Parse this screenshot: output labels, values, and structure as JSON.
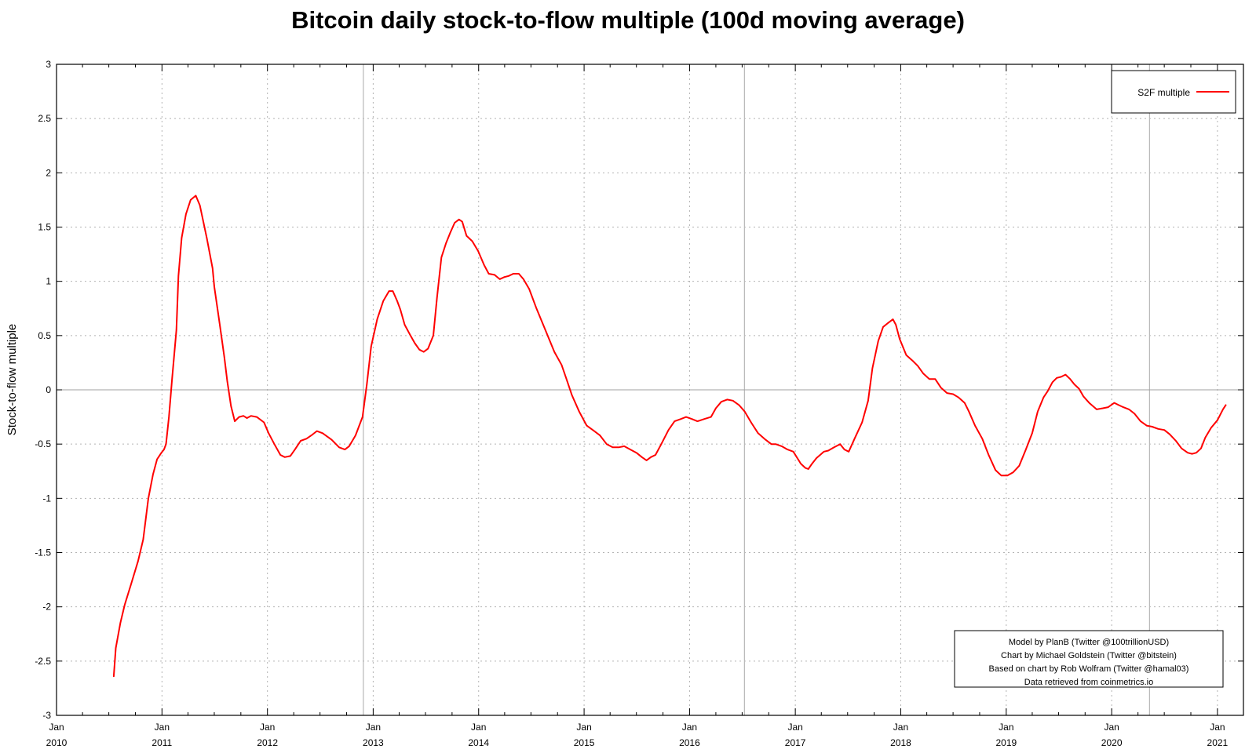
{
  "chart_data": {
    "type": "line",
    "title": "Bitcoin daily stock-to-flow multiple (100d moving average)",
    "xlabel": "",
    "ylabel": "Stock-to-flow multiple",
    "ylim": [
      -3,
      3
    ],
    "yticks": [
      3,
      2.5,
      2,
      1.5,
      1,
      0.5,
      0,
      -0.5,
      -1,
      -1.5,
      -2,
      -2.5,
      -3
    ],
    "ytick_labels": [
      "3",
      "2.5",
      "2",
      "1.5",
      "1",
      "0.5",
      "0",
      "-0.5",
      "-1",
      "-1.5",
      "-2",
      "-2.5",
      "-3"
    ],
    "xlim": [
      "2010-01-01",
      "2021-04-01"
    ],
    "xticks": [
      {
        "date": "2010-01-01",
        "month": "Jan",
        "year": "2010"
      },
      {
        "date": "2011-01-01",
        "month": "Jan",
        "year": "2011"
      },
      {
        "date": "2012-01-01",
        "month": "Jan",
        "year": "2012"
      },
      {
        "date": "2013-01-01",
        "month": "Jan",
        "year": "2013"
      },
      {
        "date": "2014-01-01",
        "month": "Jan",
        "year": "2014"
      },
      {
        "date": "2015-01-01",
        "month": "Jan",
        "year": "2015"
      },
      {
        "date": "2016-01-01",
        "month": "Jan",
        "year": "2016"
      },
      {
        "date": "2017-01-01",
        "month": "Jan",
        "year": "2017"
      },
      {
        "date": "2018-01-01",
        "month": "Jan",
        "year": "2018"
      },
      {
        "date": "2019-01-01",
        "month": "Jan",
        "year": "2019"
      },
      {
        "date": "2020-01-01",
        "month": "Jan",
        "year": "2020"
      },
      {
        "date": "2021-01-01",
        "month": "Jan",
        "year": "2021"
      }
    ],
    "grid": true,
    "zero_line": 0,
    "halving_lines": [
      "2012-11-28",
      "2016-07-09",
      "2020-05-11"
    ],
    "legend": {
      "placement": "top-right",
      "entries": [
        "S2F multiple"
      ]
    },
    "series": [
      {
        "name": "S2F multiple",
        "color": "#ff0000",
        "points": [
          [
            "2010-07-18",
            -2.64
          ],
          [
            "2010-07-25",
            -2.38
          ],
          [
            "2010-08-10",
            -2.15
          ],
          [
            "2010-08-25",
            -1.98
          ],
          [
            "2010-09-15",
            -1.8
          ],
          [
            "2010-10-10",
            -1.58
          ],
          [
            "2010-10-28",
            -1.38
          ],
          [
            "2010-11-15",
            -1.0
          ],
          [
            "2010-12-01",
            -0.78
          ],
          [
            "2010-12-15",
            -0.64
          ],
          [
            "2010-12-30",
            -0.58
          ],
          [
            "2011-01-08",
            -0.55
          ],
          [
            "2011-01-15",
            -0.5
          ],
          [
            "2011-01-25",
            -0.25
          ],
          [
            "2011-02-05",
            0.1
          ],
          [
            "2011-02-20",
            0.55
          ],
          [
            "2011-02-27",
            1.05
          ],
          [
            "2011-03-10",
            1.4
          ],
          [
            "2011-03-25",
            1.62
          ],
          [
            "2011-04-10",
            1.75
          ],
          [
            "2011-04-28",
            1.79
          ],
          [
            "2011-05-12",
            1.7
          ],
          [
            "2011-06-05",
            1.4
          ],
          [
            "2011-06-25",
            1.12
          ],
          [
            "2011-07-01",
            0.95
          ],
          [
            "2011-07-20",
            0.6
          ],
          [
            "2011-08-05",
            0.3
          ],
          [
            "2011-08-15",
            0.08
          ],
          [
            "2011-08-28",
            -0.15
          ],
          [
            "2011-09-10",
            -0.29
          ],
          [
            "2011-09-25",
            -0.25
          ],
          [
            "2011-10-10",
            -0.24
          ],
          [
            "2011-10-22",
            -0.26
          ],
          [
            "2011-11-05",
            -0.24
          ],
          [
            "2011-11-25",
            -0.25
          ],
          [
            "2011-12-20",
            -0.3
          ],
          [
            "2012-01-05",
            -0.4
          ],
          [
            "2012-01-25",
            -0.5
          ],
          [
            "2012-02-15",
            -0.6
          ],
          [
            "2012-03-01",
            -0.62
          ],
          [
            "2012-03-20",
            -0.61
          ],
          [
            "2012-04-05",
            -0.55
          ],
          [
            "2012-04-25",
            -0.47
          ],
          [
            "2012-05-15",
            -0.45
          ],
          [
            "2012-06-01",
            -0.42
          ],
          [
            "2012-06-20",
            -0.38
          ],
          [
            "2012-07-10",
            -0.4
          ],
          [
            "2012-08-10",
            -0.46
          ],
          [
            "2012-09-05",
            -0.53
          ],
          [
            "2012-09-25",
            -0.55
          ],
          [
            "2012-10-10",
            -0.52
          ],
          [
            "2012-11-01",
            -0.42
          ],
          [
            "2012-11-25",
            -0.25
          ],
          [
            "2012-12-10",
            0.05
          ],
          [
            "2012-12-25",
            0.4
          ],
          [
            "2013-01-15",
            0.65
          ],
          [
            "2013-02-05",
            0.82
          ],
          [
            "2013-02-25",
            0.91
          ],
          [
            "2013-03-10",
            0.91
          ],
          [
            "2013-03-25",
            0.82
          ],
          [
            "2013-04-05",
            0.74
          ],
          [
            "2013-04-20",
            0.6
          ],
          [
            "2013-05-10",
            0.5
          ],
          [
            "2013-05-25",
            0.43
          ],
          [
            "2013-06-10",
            0.37
          ],
          [
            "2013-06-25",
            0.35
          ],
          [
            "2013-07-10",
            0.38
          ],
          [
            "2013-07-28",
            0.5
          ],
          [
            "2013-08-10",
            0.85
          ],
          [
            "2013-08-25",
            1.22
          ],
          [
            "2013-09-10",
            1.35
          ],
          [
            "2013-09-25",
            1.45
          ],
          [
            "2013-10-10",
            1.54
          ],
          [
            "2013-10-25",
            1.57
          ],
          [
            "2013-11-05",
            1.55
          ],
          [
            "2013-11-20",
            1.42
          ],
          [
            "2013-12-10",
            1.37
          ],
          [
            "2013-12-30",
            1.28
          ],
          [
            "2014-01-20",
            1.15
          ],
          [
            "2014-02-05",
            1.07
          ],
          [
            "2014-02-25",
            1.06
          ],
          [
            "2014-03-15",
            1.02
          ],
          [
            "2014-04-01",
            1.04
          ],
          [
            "2014-04-15",
            1.05
          ],
          [
            "2014-05-01",
            1.07
          ],
          [
            "2014-05-20",
            1.07
          ],
          [
            "2014-06-05",
            1.02
          ],
          [
            "2014-06-25",
            0.93
          ],
          [
            "2014-07-20",
            0.75
          ],
          [
            "2014-08-20",
            0.55
          ],
          [
            "2014-09-20",
            0.35
          ],
          [
            "2014-10-15",
            0.23
          ],
          [
            "2014-11-01",
            0.1
          ],
          [
            "2014-11-20",
            -0.05
          ],
          [
            "2014-12-15",
            -0.2
          ],
          [
            "2015-01-10",
            -0.33
          ],
          [
            "2015-02-05",
            -0.38
          ],
          [
            "2015-02-25",
            -0.42
          ],
          [
            "2015-03-20",
            -0.5
          ],
          [
            "2015-04-10",
            -0.53
          ],
          [
            "2015-05-01",
            -0.53
          ],
          [
            "2015-05-20",
            -0.52
          ],
          [
            "2015-06-10",
            -0.55
          ],
          [
            "2015-07-01",
            -0.58
          ],
          [
            "2015-07-20",
            -0.62
          ],
          [
            "2015-08-05",
            -0.65
          ],
          [
            "2015-08-20",
            -0.62
          ],
          [
            "2015-09-05",
            -0.6
          ],
          [
            "2015-09-25",
            -0.5
          ],
          [
            "2015-10-20",
            -0.37
          ],
          [
            "2015-11-10",
            -0.29
          ],
          [
            "2015-12-01",
            -0.27
          ],
          [
            "2015-12-20",
            -0.25
          ],
          [
            "2016-01-10",
            -0.27
          ],
          [
            "2016-01-28",
            -0.29
          ],
          [
            "2016-02-20",
            -0.27
          ],
          [
            "2016-03-15",
            -0.25
          ],
          [
            "2016-04-01",
            -0.17
          ],
          [
            "2016-04-20",
            -0.11
          ],
          [
            "2016-05-10",
            -0.09
          ],
          [
            "2016-05-30",
            -0.1
          ],
          [
            "2016-06-20",
            -0.14
          ],
          [
            "2016-07-10",
            -0.2
          ],
          [
            "2016-08-01",
            -0.3
          ],
          [
            "2016-08-25",
            -0.4
          ],
          [
            "2016-09-20",
            -0.46
          ],
          [
            "2016-10-10",
            -0.5
          ],
          [
            "2016-10-25",
            -0.5
          ],
          [
            "2016-11-15",
            -0.52
          ],
          [
            "2016-12-05",
            -0.55
          ],
          [
            "2016-12-25",
            -0.57
          ],
          [
            "2017-01-20",
            -0.68
          ],
          [
            "2017-02-05",
            -0.72
          ],
          [
            "2017-02-15",
            -0.73
          ],
          [
            "2017-02-28",
            -0.68
          ],
          [
            "2017-03-15",
            -0.63
          ],
          [
            "2017-04-10",
            -0.57
          ],
          [
            "2017-04-25",
            -0.56
          ],
          [
            "2017-05-15",
            -0.53
          ],
          [
            "2017-06-05",
            -0.5
          ],
          [
            "2017-06-20",
            -0.55
          ],
          [
            "2017-07-05",
            -0.57
          ],
          [
            "2017-07-25",
            -0.45
          ],
          [
            "2017-08-20",
            -0.3
          ],
          [
            "2017-09-10",
            -0.1
          ],
          [
            "2017-09-25",
            0.2
          ],
          [
            "2017-10-15",
            0.45
          ],
          [
            "2017-11-01",
            0.58
          ],
          [
            "2017-11-15",
            0.61
          ],
          [
            "2017-12-05",
            0.65
          ],
          [
            "2017-12-15",
            0.6
          ],
          [
            "2017-12-28",
            0.47
          ],
          [
            "2018-01-20",
            0.32
          ],
          [
            "2018-02-10",
            0.27
          ],
          [
            "2018-03-01",
            0.22
          ],
          [
            "2018-03-20",
            0.15
          ],
          [
            "2018-04-10",
            0.1
          ],
          [
            "2018-04-30",
            0.1
          ],
          [
            "2018-05-20",
            0.02
          ],
          [
            "2018-06-10",
            -0.03
          ],
          [
            "2018-07-01",
            -0.04
          ],
          [
            "2018-07-20",
            -0.07
          ],
          [
            "2018-08-10",
            -0.12
          ],
          [
            "2018-08-25",
            -0.2
          ],
          [
            "2018-09-15",
            -0.33
          ],
          [
            "2018-10-10",
            -0.45
          ],
          [
            "2018-11-01",
            -0.6
          ],
          [
            "2018-11-25",
            -0.74
          ],
          [
            "2018-12-15",
            -0.79
          ],
          [
            "2019-01-05",
            -0.79
          ],
          [
            "2019-01-25",
            -0.76
          ],
          [
            "2019-02-15",
            -0.7
          ],
          [
            "2019-03-10",
            -0.55
          ],
          [
            "2019-04-01",
            -0.4
          ],
          [
            "2019-04-20",
            -0.2
          ],
          [
            "2019-05-10",
            -0.07
          ],
          [
            "2019-05-25",
            -0.01
          ],
          [
            "2019-06-10",
            0.07
          ],
          [
            "2019-06-25",
            0.11
          ],
          [
            "2019-07-10",
            0.12
          ],
          [
            "2019-07-25",
            0.14
          ],
          [
            "2019-08-10",
            0.1
          ],
          [
            "2019-08-25",
            0.05
          ],
          [
            "2019-09-10",
            0.01
          ],
          [
            "2019-09-25",
            -0.06
          ],
          [
            "2019-10-15",
            -0.12
          ],
          [
            "2019-11-10",
            -0.18
          ],
          [
            "2019-12-01",
            -0.17
          ],
          [
            "2019-12-20",
            -0.16
          ],
          [
            "2020-01-10",
            -0.12
          ],
          [
            "2020-01-25",
            -0.14
          ],
          [
            "2020-02-10",
            -0.16
          ],
          [
            "2020-03-01",
            -0.18
          ],
          [
            "2020-03-20",
            -0.22
          ],
          [
            "2020-04-10",
            -0.29
          ],
          [
            "2020-05-01",
            -0.33
          ],
          [
            "2020-05-20",
            -0.34
          ],
          [
            "2020-06-10",
            -0.36
          ],
          [
            "2020-07-01",
            -0.37
          ],
          [
            "2020-07-20",
            -0.41
          ],
          [
            "2020-08-10",
            -0.47
          ],
          [
            "2020-08-30",
            -0.54
          ],
          [
            "2020-09-20",
            -0.58
          ],
          [
            "2020-10-05",
            -0.59
          ],
          [
            "2020-10-20",
            -0.58
          ],
          [
            "2020-11-05",
            -0.54
          ],
          [
            "2020-11-20",
            -0.44
          ],
          [
            "2020-12-10",
            -0.35
          ],
          [
            "2021-01-01",
            -0.28
          ],
          [
            "2021-01-20",
            -0.18
          ],
          [
            "2021-01-30",
            -0.14
          ]
        ]
      }
    ]
  },
  "credits": [
    "Model by PlanB (Twitter @100trillionUSD)",
    "Chart by Michael Goldstein (Twitter @bitstein)",
    "Based on chart by Rob Wolfram (Twitter @hamal03)",
    "Data retrieved from coinmetrics.io"
  ]
}
